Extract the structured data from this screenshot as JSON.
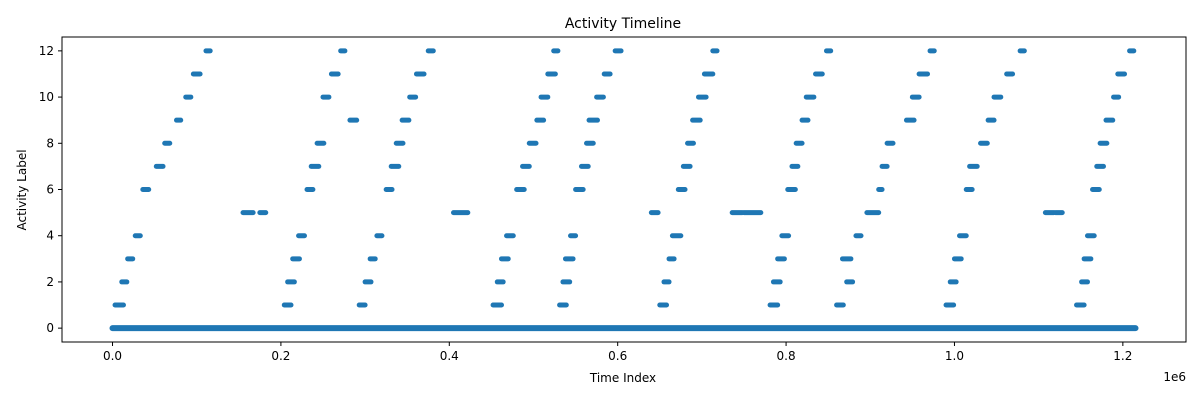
{
  "chart_data": {
    "type": "scatter",
    "title": "Activity Timeline",
    "xlabel": "Time Index",
    "ylabel": "Activity Label",
    "x_offset_text": "1e6",
    "xlim": [
      -60000,
      1275000
    ],
    "ylim": [
      -0.6,
      12.6
    ],
    "x_ticks": [
      0,
      200000,
      400000,
      600000,
      800000,
      1000000,
      1200000
    ],
    "x_tick_labels": [
      "0.0",
      "0.2",
      "0.4",
      "0.6",
      "0.8",
      "1.0",
      "1.2"
    ],
    "y_ticks": [
      0,
      2,
      4,
      6,
      8,
      10,
      12
    ],
    "y_tick_labels": [
      "0",
      "2",
      "4",
      "6",
      "8",
      "10",
      "12"
    ],
    "grid": false,
    "marker_color": "#1f77b4",
    "series": [
      {
        "name": "",
        "baseline": {
          "y": 0,
          "x_start": 0,
          "x_end": 1215000
        },
        "segments": [
          {
            "y": 1,
            "x0": 3000,
            "x1": 13000
          },
          {
            "y": 2,
            "x0": 11000,
            "x1": 17000
          },
          {
            "y": 3,
            "x0": 18000,
            "x1": 24000
          },
          {
            "y": 4,
            "x0": 27000,
            "x1": 33000
          },
          {
            "y": 6,
            "x0": 36000,
            "x1": 43000
          },
          {
            "y": 7,
            "x0": 52000,
            "x1": 60000
          },
          {
            "y": 8,
            "x0": 62000,
            "x1": 68000
          },
          {
            "y": 9,
            "x0": 76000,
            "x1": 81000
          },
          {
            "y": 10,
            "x0": 87000,
            "x1": 93000
          },
          {
            "y": 11,
            "x0": 96000,
            "x1": 104000
          },
          {
            "y": 12,
            "x0": 111000,
            "x1": 116000
          },
          {
            "y": 5,
            "x0": 155000,
            "x1": 167000
          },
          {
            "y": 5,
            "x0": 175000,
            "x1": 182000
          },
          {
            "y": 1,
            "x0": 204000,
            "x1": 212000
          },
          {
            "y": 2,
            "x0": 208000,
            "x1": 216000
          },
          {
            "y": 3,
            "x0": 214000,
            "x1": 222000
          },
          {
            "y": 4,
            "x0": 221000,
            "x1": 228000
          },
          {
            "y": 6,
            "x0": 231000,
            "x1": 238000
          },
          {
            "y": 7,
            "x0": 236000,
            "x1": 245000
          },
          {
            "y": 8,
            "x0": 243000,
            "x1": 251000
          },
          {
            "y": 9,
            "x0": "",
            "x1": ""
          },
          {
            "y": 10,
            "x0": 250000,
            "x1": 257000
          },
          {
            "y": 11,
            "x0": 260000,
            "x1": 268000
          },
          {
            "y": 12,
            "x0": 271000,
            "x1": 276000
          },
          {
            "y": 9,
            "x0": 282000,
            "x1": 290000
          },
          {
            "y": 1,
            "x0": 293000,
            "x1": 300000
          },
          {
            "y": 2,
            "x0": 300000,
            "x1": 307000
          },
          {
            "y": 3,
            "x0": 306000,
            "x1": 312000
          },
          {
            "y": 4,
            "x0": 314000,
            "x1": 320000
          },
          {
            "y": 6,
            "x0": 325000,
            "x1": 332000
          },
          {
            "y": 7,
            "x0": 331000,
            "x1": 340000
          },
          {
            "y": 8,
            "x0": 337000,
            "x1": 345000
          },
          {
            "y": 9,
            "x0": 344000,
            "x1": 352000
          },
          {
            "y": 10,
            "x0": 353000,
            "x1": 360000
          },
          {
            "y": 11,
            "x0": 361000,
            "x1": 370000
          },
          {
            "y": 12,
            "x0": 375000,
            "x1": 381000
          },
          {
            "y": 5,
            "x0": 405000,
            "x1": 422000
          },
          {
            "y": 1,
            "x0": 452000,
            "x1": 462000
          },
          {
            "y": 2,
            "x0": 457000,
            "x1": 464000
          },
          {
            "y": 3,
            "x0": 462000,
            "x1": 470000
          },
          {
            "y": 4,
            "x0": 468000,
            "x1": 476000
          },
          {
            "y": 6,
            "x0": 480000,
            "x1": 489000
          },
          {
            "y": 7,
            "x0": 487000,
            "x1": 495000
          },
          {
            "y": 8,
            "x0": 495000,
            "x1": 503000
          },
          {
            "y": 9,
            "x0": 504000,
            "x1": 512000
          },
          {
            "y": 10,
            "x0": 509000,
            "x1": 517000
          },
          {
            "y": 11,
            "x0": 517000,
            "x1": 526000
          },
          {
            "y": 12,
            "x0": 524000,
            "x1": 529000
          },
          {
            "y": 1,
            "x0": 531000,
            "x1": 539000
          },
          {
            "y": 2,
            "x0": 535000,
            "x1": 543000
          },
          {
            "y": 3,
            "x0": 538000,
            "x1": 547000
          },
          {
            "y": 4,
            "x0": 544000,
            "x1": 550000
          },
          {
            "y": 6,
            "x0": 550000,
            "x1": 559000
          },
          {
            "y": 7,
            "x0": 557000,
            "x1": 565000
          },
          {
            "y": 8,
            "x0": 563000,
            "x1": 571000
          },
          {
            "y": 9,
            "x0": 566000,
            "x1": 576000
          },
          {
            "y": 10,
            "x0": 575000,
            "x1": 583000
          },
          {
            "y": 11,
            "x0": 584000,
            "x1": 591000
          },
          {
            "y": 12,
            "x0": 597000,
            "x1": 604000
          },
          {
            "y": 5,
            "x0": 640000,
            "x1": 648000
          },
          {
            "y": 1,
            "x0": 650000,
            "x1": 658000
          },
          {
            "y": 2,
            "x0": 655000,
            "x1": 661000
          },
          {
            "y": 3,
            "x0": 661000,
            "x1": 667000
          },
          {
            "y": 4,
            "x0": 665000,
            "x1": 675000
          },
          {
            "y": 6,
            "x0": 672000,
            "x1": 680000
          },
          {
            "y": 7,
            "x0": 678000,
            "x1": 686000
          },
          {
            "y": 8,
            "x0": 683000,
            "x1": 690000
          },
          {
            "y": 9,
            "x0": 689000,
            "x1": 698000
          },
          {
            "y": 10,
            "x0": 696000,
            "x1": 705000
          },
          {
            "y": 11,
            "x0": 703000,
            "x1": 713000
          },
          {
            "y": 12,
            "x0": 713000,
            "x1": 718000
          },
          {
            "y": 5,
            "x0": 736000,
            "x1": 748000
          },
          {
            "y": 5,
            "x0": 750000,
            "x1": 770000
          },
          {
            "y": 1,
            "x0": 781000,
            "x1": 790000
          },
          {
            "y": 2,
            "x0": 785000,
            "x1": 793000
          },
          {
            "y": 3,
            "x0": 790000,
            "x1": 798000
          },
          {
            "y": 4,
            "x0": 795000,
            "x1": 803000
          },
          {
            "y": 6,
            "x0": 802000,
            "x1": 811000
          },
          {
            "y": 7,
            "x0": 807000,
            "x1": 814000
          },
          {
            "y": 8,
            "x0": 812000,
            "x1": 819000
          },
          {
            "y": 9,
            "x0": 819000,
            "x1": 826000
          },
          {
            "y": 10,
            "x0": 824000,
            "x1": 833000
          },
          {
            "y": 11,
            "x0": 835000,
            "x1": 843000
          },
          {
            "y": 12,
            "x0": 848000,
            "x1": 853000
          },
          {
            "y": 1,
            "x0": 860000,
            "x1": 868000
          },
          {
            "y": 3,
            "x0": 867000,
            "x1": 877000
          },
          {
            "y": 2,
            "x0": 872000,
            "x1": 879000
          },
          {
            "y": 4,
            "x0": 883000,
            "x1": 889000
          },
          {
            "y": 5,
            "x0": 896000,
            "x1": 910000
          },
          {
            "y": 6,
            "x0": 910000,
            "x1": 914000
          },
          {
            "y": 7,
            "x0": 914000,
            "x1": 920000
          },
          {
            "y": 8,
            "x0": 920000,
            "x1": 927000
          },
          {
            "y": 9,
            "x0": 943000,
            "x1": 952000
          },
          {
            "y": 10,
            "x0": 950000,
            "x1": 958000
          },
          {
            "y": 11,
            "x0": 958000,
            "x1": 968000
          },
          {
            "y": 12,
            "x0": 971000,
            "x1": 976000
          },
          {
            "y": 1,
            "x0": 990000,
            "x1": 999000
          },
          {
            "y": 2,
            "x0": 995000,
            "x1": 1002000
          },
          {
            "y": 3,
            "x0": 1000000,
            "x1": 1008000
          },
          {
            "y": 4,
            "x0": 1006000,
            "x1": 1014000
          },
          {
            "y": 6,
            "x0": 1014000,
            "x1": 1021000
          },
          {
            "y": 7,
            "x0": 1018000,
            "x1": 1027000
          },
          {
            "y": 8,
            "x0": 1031000,
            "x1": 1039000
          },
          {
            "y": 9,
            "x0": 1040000,
            "x1": 1047000
          },
          {
            "y": 10,
            "x0": 1047000,
            "x1": 1055000
          },
          {
            "y": 11,
            "x0": 1062000,
            "x1": 1069000
          },
          {
            "y": 12,
            "x0": 1078000,
            "x1": 1083000
          },
          {
            "y": 5,
            "x0": 1108000,
            "x1": 1118000
          },
          {
            "y": 5,
            "x0": 1120000,
            "x1": 1128000
          },
          {
            "y": 1,
            "x0": 1145000,
            "x1": 1154000
          },
          {
            "y": 2,
            "x0": 1151000,
            "x1": 1158000
          },
          {
            "y": 3,
            "x0": 1154000,
            "x1": 1162000
          },
          {
            "y": 4,
            "x0": 1158000,
            "x1": 1166000
          },
          {
            "y": 6,
            "x0": 1164000,
            "x1": 1172000
          },
          {
            "y": 7,
            "x0": 1169000,
            "x1": 1177000
          },
          {
            "y": 8,
            "x0": 1173000,
            "x1": 1181000
          },
          {
            "y": 9,
            "x0": 1180000,
            "x1": 1188000
          },
          {
            "y": 10,
            "x0": 1189000,
            "x1": 1195000
          },
          {
            "y": 11,
            "x0": 1194000,
            "x1": 1202000
          },
          {
            "y": 12,
            "x0": 1208000,
            "x1": 1213000
          }
        ]
      }
    ]
  }
}
